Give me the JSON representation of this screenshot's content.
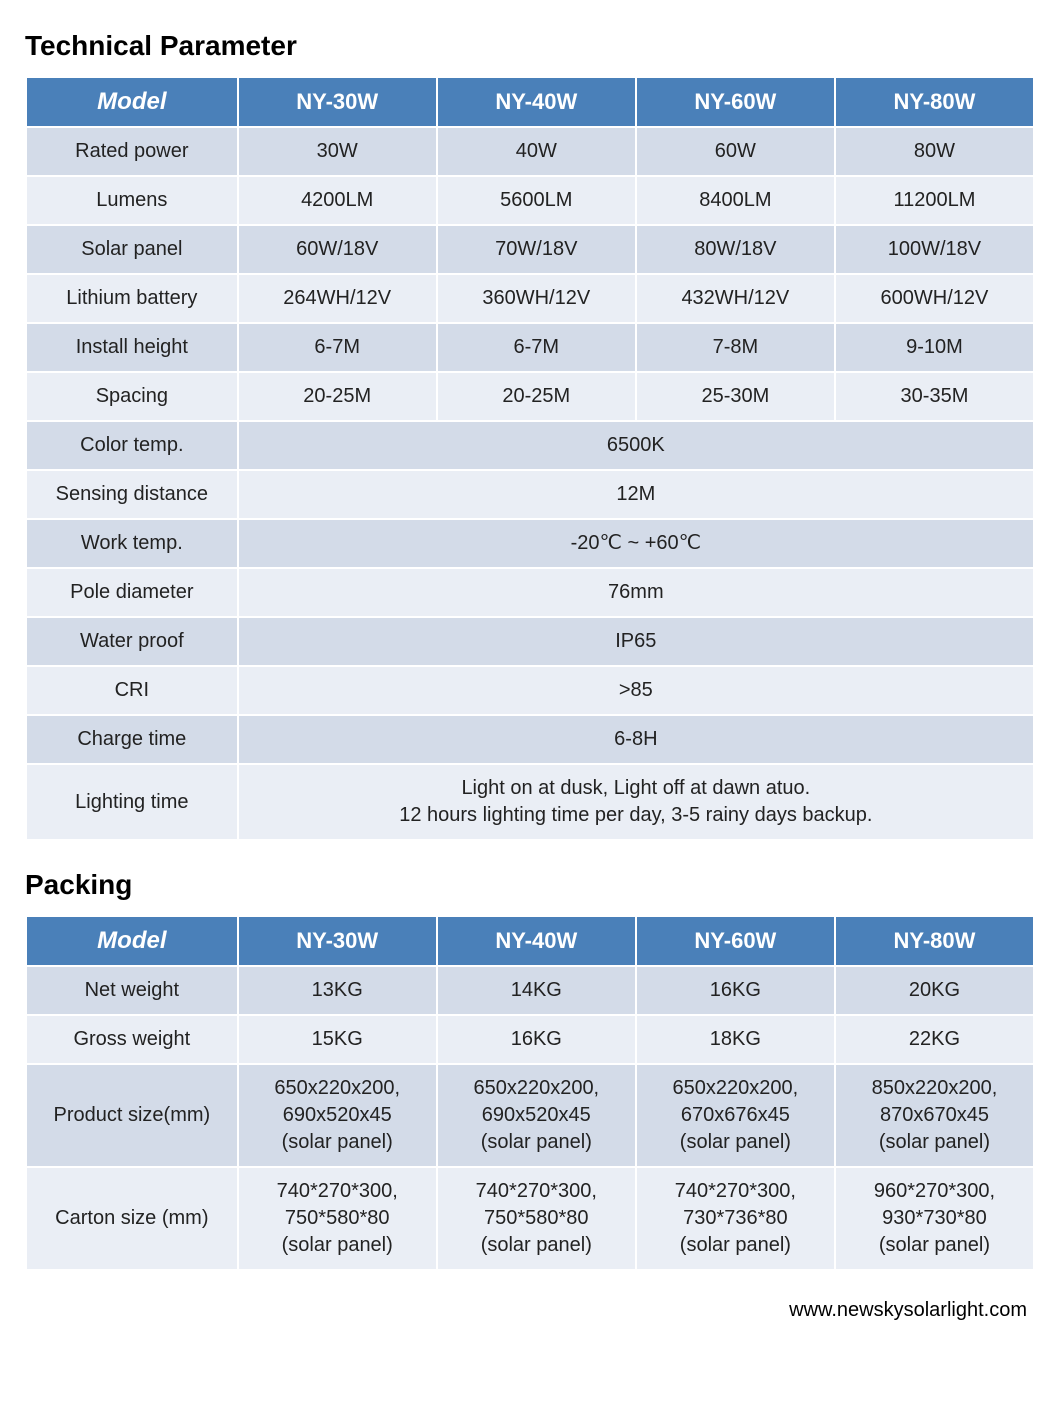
{
  "colors": {
    "header_bg": "#4a80b9",
    "header_fg": "#ffffff",
    "row_odd_bg": "#d3dbe8",
    "row_even_bg": "#eaeef5",
    "text": "#222222",
    "border": "#ffffff"
  },
  "tech": {
    "heading": "Technical Parameter",
    "columns": [
      "Model",
      "NY-30W",
      "NY-40W",
      "NY-60W",
      "NY-80W"
    ],
    "col_widths_percent": [
      21,
      19.75,
      19.75,
      19.75,
      19.75
    ],
    "header_fontsize": 22,
    "model_header_fontsize": 24,
    "cell_fontsize": 20,
    "simple_rows": [
      {
        "label": "Rated power",
        "values": [
          "30W",
          "40W",
          "60W",
          "80W"
        ]
      },
      {
        "label": "Lumens",
        "values": [
          "4200LM",
          "5600LM",
          "8400LM",
          "11200LM"
        ]
      },
      {
        "label": "Solar panel",
        "values": [
          "60W/18V",
          "70W/18V",
          "80W/18V",
          "100W/18V"
        ]
      },
      {
        "label": "Lithium battery",
        "values": [
          "264WH/12V",
          "360WH/12V",
          "432WH/12V",
          "600WH/12V"
        ]
      },
      {
        "label": "Install height",
        "values": [
          "6-7M",
          "6-7M",
          "7-8M",
          "9-10M"
        ]
      },
      {
        "label": "Spacing",
        "values": [
          "20-25M",
          "20-25M",
          "25-30M",
          "30-35M"
        ]
      }
    ],
    "merged_rows": [
      {
        "label": "Color temp.",
        "value": "6500K"
      },
      {
        "label": "Sensing distance",
        "value": "12M"
      },
      {
        "label": "Work temp.",
        "value": "-20℃ ~ +60℃"
      },
      {
        "label": "Pole diameter",
        "value": "76mm"
      },
      {
        "label": "Water proof",
        "value": "IP65"
      },
      {
        "label": "CRI",
        "value": ">85"
      },
      {
        "label": "Charge time",
        "value": "6-8H"
      },
      {
        "label": "Lighting time",
        "value": "Light on at dusk, Light off at dawn atuo.\n12 hours lighting time per day, 3-5 rainy days backup."
      }
    ]
  },
  "packing": {
    "heading": "Packing",
    "columns": [
      "Model",
      "NY-30W",
      "NY-40W",
      "NY-60W",
      "NY-80W"
    ],
    "col_widths_percent": [
      21,
      19.75,
      19.75,
      19.75,
      19.75
    ],
    "rows": [
      {
        "label": "Net weight",
        "values": [
          "13KG",
          "14KG",
          "16KG",
          "20KG"
        ]
      },
      {
        "label": "Gross weight",
        "values": [
          "15KG",
          "16KG",
          "18KG",
          "22KG"
        ]
      },
      {
        "label": "Product size(mm)",
        "values": [
          "650x220x200,\n690x520x45\n(solar panel)",
          "650x220x200,\n690x520x45\n(solar panel)",
          "650x220x200,\n670x676x45\n(solar panel)",
          "850x220x200,\n870x670x45\n(solar panel)"
        ]
      },
      {
        "label": "Carton size (mm)",
        "values": [
          "740*270*300,\n750*580*80\n(solar panel)",
          "740*270*300,\n750*580*80\n(solar panel)",
          "740*270*300,\n730*736*80\n(solar panel)",
          "960*270*300,\n930*730*80\n(solar panel)"
        ]
      }
    ]
  },
  "footer": "www.newskysolarlight.com"
}
